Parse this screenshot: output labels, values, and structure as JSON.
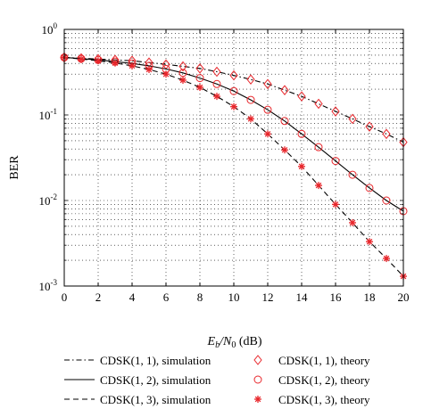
{
  "chart_data": {
    "type": "line",
    "title": "",
    "ylabel": "BER",
    "xlabel": {
      "main": "E",
      "sub1": "b",
      "slash": "/N",
      "sub2": "0",
      "unit": " (dB)"
    },
    "x": [
      0,
      1,
      2,
      3,
      4,
      5,
      6,
      7,
      8,
      9,
      10,
      11,
      12,
      13,
      14,
      15,
      16,
      17,
      18,
      19,
      20
    ],
    "xlim": [
      0,
      20
    ],
    "ylim": [
      0.001,
      1
    ],
    "yscale": "log",
    "grid": true,
    "xticks": [
      0,
      2,
      4,
      6,
      8,
      10,
      12,
      14,
      16,
      18,
      20
    ],
    "yticks": [
      {
        "base": "10",
        "exp": "0",
        "value": 1
      },
      {
        "base": "10",
        "exp": "-1",
        "value": 0.1
      },
      {
        "base": "10",
        "exp": "-2",
        "value": 0.01
      },
      {
        "base": "10",
        "exp": "-3",
        "value": 0.001
      }
    ],
    "legend_position": "bottom",
    "series": [
      {
        "name": "CDSK(1, 1), simulation",
        "style": "dashdot",
        "color": "#000000",
        "values": [
          0.47,
          0.46,
          0.45,
          0.44,
          0.43,
          0.41,
          0.39,
          0.37,
          0.35,
          0.32,
          0.29,
          0.26,
          0.23,
          0.195,
          0.165,
          0.135,
          0.11,
          0.09,
          0.073,
          0.06,
          0.048
        ]
      },
      {
        "name": "CDSK(1, 1), theory",
        "marker": "diamond",
        "color": "#e8262b",
        "values": [
          0.47,
          0.46,
          0.45,
          0.44,
          0.43,
          0.41,
          0.39,
          0.37,
          0.35,
          0.32,
          0.29,
          0.26,
          0.23,
          0.195,
          0.165,
          0.135,
          0.11,
          0.09,
          0.073,
          0.06,
          0.048
        ]
      },
      {
        "name": "CDSK(1, 2), simulation",
        "style": "solid",
        "color": "#000000",
        "values": [
          0.47,
          0.455,
          0.44,
          0.42,
          0.4,
          0.375,
          0.345,
          0.31,
          0.27,
          0.23,
          0.19,
          0.15,
          0.115,
          0.085,
          0.06,
          0.042,
          0.029,
          0.02,
          0.014,
          0.01,
          0.0075
        ]
      },
      {
        "name": "CDSK(1, 2), theory",
        "marker": "circle",
        "color": "#e8262b",
        "values": [
          0.47,
          0.455,
          0.44,
          0.42,
          0.4,
          0.375,
          0.345,
          0.31,
          0.27,
          0.23,
          0.19,
          0.15,
          0.115,
          0.085,
          0.06,
          0.042,
          0.029,
          0.02,
          0.014,
          0.01,
          0.0075
        ]
      },
      {
        "name": "CDSK(1, 3), simulation",
        "style": "dashed",
        "color": "#000000",
        "values": [
          0.47,
          0.45,
          0.43,
          0.405,
          0.375,
          0.34,
          0.3,
          0.255,
          0.21,
          0.165,
          0.125,
          0.09,
          0.06,
          0.039,
          0.025,
          0.015,
          0.009,
          0.0055,
          0.0033,
          0.0021,
          0.0013
        ]
      },
      {
        "name": "CDSK(1, 3), theory",
        "marker": "star",
        "color": "#e8262b",
        "values": [
          0.47,
          0.45,
          0.43,
          0.405,
          0.375,
          0.34,
          0.3,
          0.255,
          0.21,
          0.165,
          0.125,
          0.09,
          0.06,
          0.039,
          0.025,
          0.015,
          0.009,
          0.0055,
          0.0033,
          0.0021,
          0.0013
        ]
      }
    ]
  }
}
